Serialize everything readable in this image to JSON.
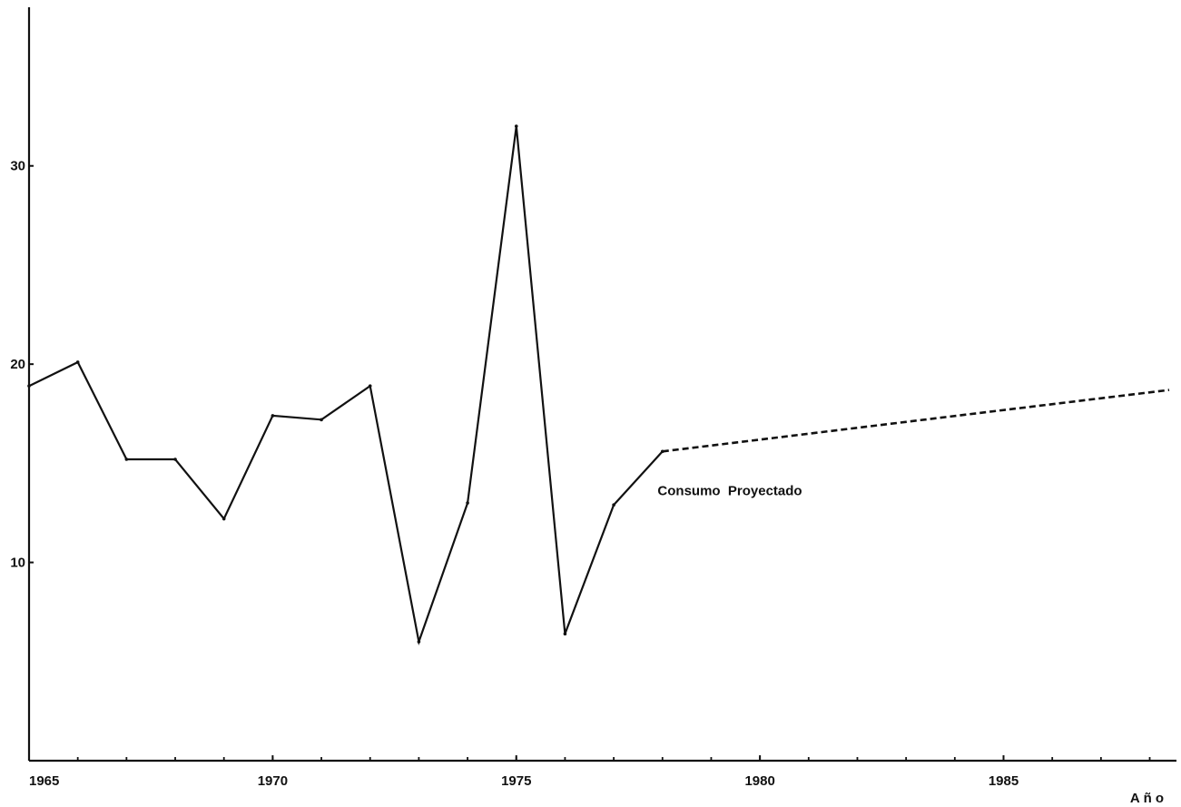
{
  "chart_data": {
    "type": "line",
    "title": "",
    "xlabel": "Año",
    "ylabel": "",
    "xlim": [
      1965,
      1988.4
    ],
    "ylim": [
      0,
      38
    ],
    "x_ticks": [
      1965,
      1970,
      1975,
      1980,
      1985
    ],
    "x_tick_labels": [
      "1965",
      "1970",
      "1975",
      "1980",
      "1985"
    ],
    "y_ticks": [
      10,
      20,
      30
    ],
    "y_tick_labels": [
      "10",
      "20",
      "30"
    ],
    "grid": false,
    "series": [
      {
        "style": "solid",
        "x": [
          1965,
          1966,
          1967,
          1968,
          1969,
          1970,
          1971,
          1972,
          1973,
          1974,
          1975,
          1976,
          1977,
          1978
        ],
        "y": [
          18.9,
          20.1,
          15.2,
          15.2,
          12.2,
          17.4,
          17.2,
          18.9,
          6.0,
          13.0,
          32.0,
          6.4,
          12.9,
          15.6
        ]
      },
      {
        "style": "dashed",
        "x": [
          1978,
          1988.4
        ],
        "y": [
          15.6,
          18.7
        ]
      }
    ],
    "annotations": [
      {
        "text": "Consumo  Proyectado",
        "x": 1977.9,
        "y": 13.4
      }
    ],
    "colors": {
      "line": "#111111",
      "axis": "#111111",
      "background": "#ffffff"
    }
  }
}
